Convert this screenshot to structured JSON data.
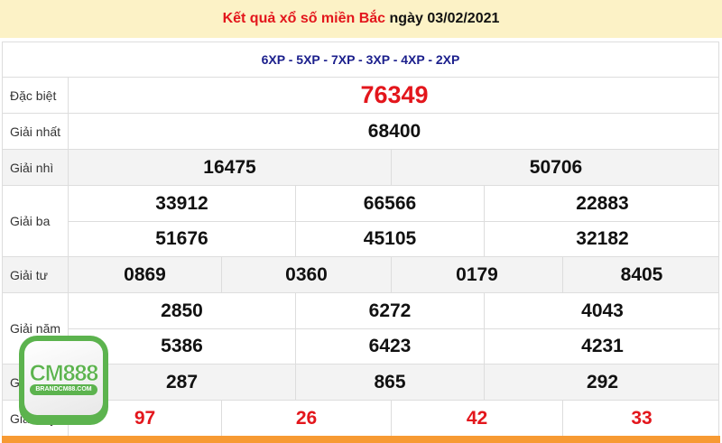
{
  "title": {
    "prefix": "Kết quả xổ số miền Bắc",
    "date": "ngày 03/02/2021"
  },
  "codes": "6XP - 5XP - 7XP - 3XP - 4XP - 2XP",
  "prizes": [
    {
      "label": "Đặc biệt",
      "cols": 1,
      "values": [
        "76349"
      ],
      "red": true,
      "big": true,
      "gray": false
    },
    {
      "label": "Giải nhất",
      "cols": 1,
      "values": [
        "68400"
      ],
      "gray": false
    },
    {
      "label": "Giải nhì",
      "cols": 2,
      "values": [
        "16475",
        "50706"
      ],
      "gray": true
    },
    {
      "label": "Giải ba",
      "cols": 3,
      "values": [
        "33912",
        "66566",
        "22883",
        "51676",
        "45105",
        "32182"
      ],
      "gray": false
    },
    {
      "label": "Giải tư",
      "cols": 4,
      "values": [
        "0869",
        "0360",
        "0179",
        "8405"
      ],
      "gray": true
    },
    {
      "label": "Giải năm",
      "cols": 3,
      "values": [
        "2850",
        "6272",
        "4043",
        "5386",
        "6423",
        "4231"
      ],
      "gray": false
    },
    {
      "label": "Giải sáu",
      "cols": 3,
      "values": [
        "287",
        "865",
        "292"
      ],
      "gray": true
    },
    {
      "label": "Giải bảy",
      "cols": 4,
      "values": [
        "97",
        "26",
        "42",
        "33"
      ],
      "red": true,
      "gray": false
    }
  ],
  "logo": {
    "name": "CM888",
    "url_text": "BRANDCM88.COM"
  },
  "colors": {
    "red": "#e3161c",
    "navy": "#1b1f8c",
    "title_bg": "#fcf2c6",
    "logo_green": "#5cb34e",
    "footer_orange": "#f79a33"
  }
}
